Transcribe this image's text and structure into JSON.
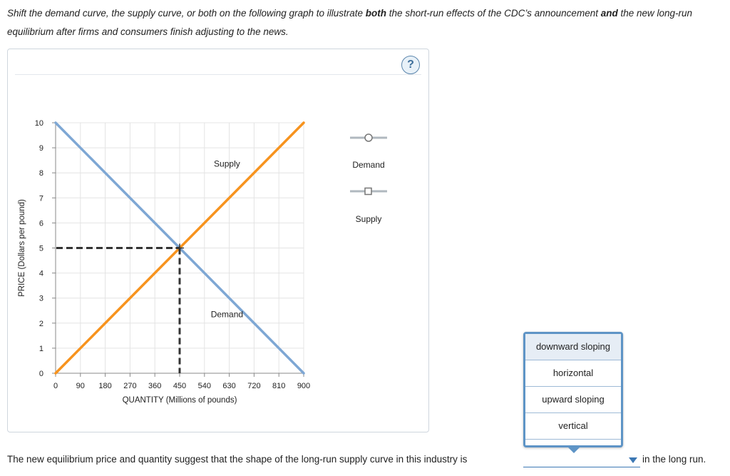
{
  "instructions": {
    "p1": "Shift the demand curve, the supply curve, or both on the following graph to illustrate ",
    "b1": "both",
    "p2": " the short-run effects of the CDC’s announcement ",
    "b2": "and",
    "p3": " the new long-run equilibrium after firms and consumers finish adjusting to the news."
  },
  "help_label": "?",
  "palette": {
    "demand_icon": "Demand",
    "supply_icon": "Supply"
  },
  "chart_data": {
    "type": "line",
    "xlabel": "QUANTITY (Millions of pounds)",
    "ylabel": "PRICE (Dollars per pound)",
    "xlim": [
      0,
      900
    ],
    "ylim": [
      0,
      10
    ],
    "x_ticks": [
      0,
      90,
      180,
      270,
      360,
      450,
      540,
      630,
      720,
      810,
      900
    ],
    "y_ticks": [
      0,
      1,
      2,
      3,
      4,
      5,
      6,
      7,
      8,
      9,
      10
    ],
    "grid": true,
    "series": [
      {
        "name": "Supply",
        "color": "#f7931e",
        "points": [
          [
            0,
            0
          ],
          [
            900,
            10
          ]
        ],
        "label_at": [
          720,
          8.5
        ]
      },
      {
        "name": "Demand",
        "color": "#7ea7d4",
        "points": [
          [
            0,
            10
          ],
          [
            900,
            0
          ]
        ],
        "label_at": [
          720,
          2.5
        ]
      }
    ],
    "equilibrium": {
      "x": 450,
      "y": 5
    }
  },
  "question": {
    "text": "The new equilibrium price and quantity suggest that the shape of the long-run supply curve in this industry is",
    "suffix": "in the long run.",
    "selected": "",
    "options": [
      "downward sloping",
      "horizontal",
      "upward sloping",
      "vertical"
    ],
    "highlighted": "downward sloping"
  }
}
